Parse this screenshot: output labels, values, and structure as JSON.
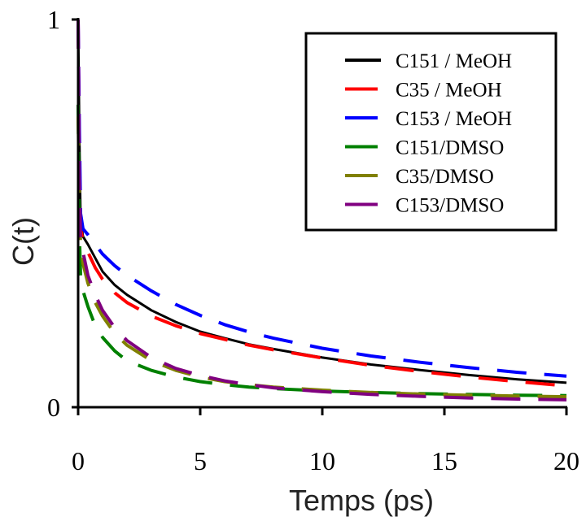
{
  "chart_data": {
    "type": "line",
    "title": "",
    "xlabel": "Temps (ps)",
    "ylabel": "C(t)",
    "xlim": [
      0,
      20
    ],
    "ylim": [
      0,
      1
    ],
    "x_ticks": [
      0,
      5,
      10,
      15,
      20
    ],
    "y_ticks": [
      0,
      1
    ],
    "x_tick_labels": [
      "0",
      "5",
      "10",
      "15",
      "20"
    ],
    "y_tick_labels": [
      "0",
      "1"
    ],
    "grid": false,
    "legend_position": "top-right",
    "series": [
      {
        "name": "C151 / MeOH",
        "color": "#000000",
        "style": "solid",
        "x": [
          0,
          0.05,
          0.1,
          0.2,
          0.4,
          0.7,
          1,
          1.5,
          2,
          3,
          4,
          5,
          6,
          7,
          8,
          10,
          12,
          14,
          16,
          18,
          20
        ],
        "y": [
          1.0,
          0.7,
          0.48,
          0.44,
          0.42,
          0.385,
          0.35,
          0.315,
          0.29,
          0.25,
          0.22,
          0.195,
          0.178,
          0.162,
          0.15,
          0.128,
          0.11,
          0.096,
          0.083,
          0.072,
          0.063
        ]
      },
      {
        "name": "C35 / MeOH",
        "color": "#ff0000",
        "style": "dashed",
        "x": [
          0,
          0.05,
          0.1,
          0.2,
          0.4,
          0.7,
          1,
          1.5,
          2,
          3,
          4,
          5,
          6,
          7,
          8,
          10,
          12,
          14,
          16,
          18,
          20
        ],
        "y": [
          1.0,
          0.65,
          0.46,
          0.43,
          0.4,
          0.36,
          0.33,
          0.295,
          0.27,
          0.235,
          0.21,
          0.19,
          0.175,
          0.16,
          0.148,
          0.127,
          0.108,
          0.092,
          0.078,
          0.066,
          0.055
        ]
      },
      {
        "name": "C153 / MeOH",
        "color": "#0000ff",
        "style": "dashed",
        "x": [
          0,
          0.05,
          0.1,
          0.2,
          0.4,
          0.7,
          1,
          1.5,
          2,
          3,
          4,
          5,
          6,
          7,
          8,
          10,
          12,
          14,
          16,
          18,
          20
        ],
        "y": [
          1.0,
          0.72,
          0.5,
          0.46,
          0.445,
          0.42,
          0.395,
          0.365,
          0.34,
          0.3,
          0.265,
          0.237,
          0.213,
          0.194,
          0.178,
          0.152,
          0.132,
          0.116,
          0.102,
          0.09,
          0.08
        ]
      },
      {
        "name": "C151/DMSO",
        "color": "#008000",
        "style": "dashed",
        "x": [
          0,
          0.05,
          0.1,
          0.2,
          0.4,
          0.7,
          1,
          1.5,
          2,
          3,
          4,
          5,
          6,
          7,
          8,
          10,
          12,
          14,
          16,
          18,
          20
        ],
        "y": [
          0.78,
          0.45,
          0.34,
          0.3,
          0.26,
          0.21,
          0.18,
          0.145,
          0.12,
          0.095,
          0.078,
          0.066,
          0.058,
          0.052,
          0.048,
          0.042,
          0.038,
          0.035,
          0.033,
          0.031,
          0.03
        ]
      },
      {
        "name": "C35/DMSO",
        "color": "#808000",
        "style": "dashed",
        "x": [
          0,
          0.05,
          0.1,
          0.2,
          0.4,
          0.7,
          1,
          1.5,
          2,
          3,
          4,
          5,
          6,
          7,
          8,
          10,
          12,
          14,
          16,
          18,
          20
        ],
        "y": [
          0.75,
          0.55,
          0.42,
          0.37,
          0.32,
          0.27,
          0.235,
          0.19,
          0.16,
          0.12,
          0.095,
          0.078,
          0.066,
          0.058,
          0.052,
          0.044,
          0.038,
          0.034,
          0.031,
          0.029,
          0.027
        ]
      },
      {
        "name": "C153/DMSO",
        "color": "#800080",
        "style": "dashed",
        "x": [
          0,
          0.05,
          0.1,
          0.2,
          0.4,
          0.7,
          1,
          1.5,
          2,
          3,
          4,
          5,
          6,
          7,
          8,
          10,
          12,
          14,
          16,
          18,
          20
        ],
        "y": [
          1.0,
          0.6,
          0.44,
          0.4,
          0.34,
          0.29,
          0.25,
          0.205,
          0.172,
          0.128,
          0.1,
          0.082,
          0.068,
          0.058,
          0.05,
          0.04,
          0.033,
          0.028,
          0.024,
          0.021,
          0.019
        ]
      }
    ]
  }
}
